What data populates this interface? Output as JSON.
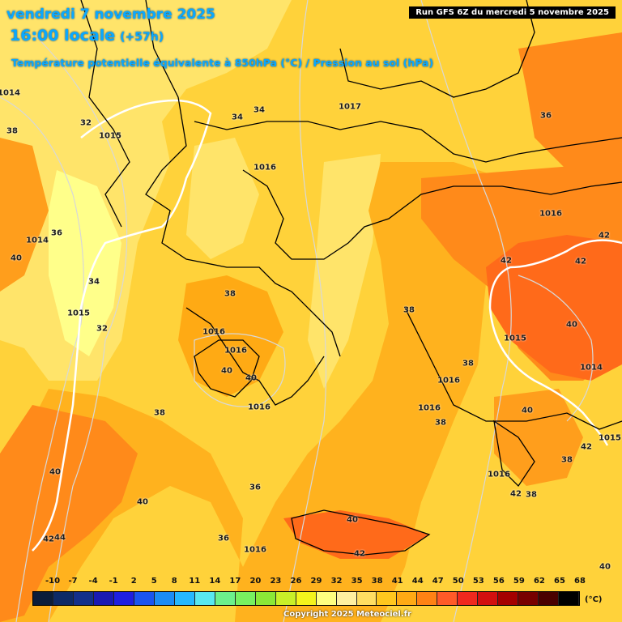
{
  "header": {
    "date": "vendredi 7 novembre 2025",
    "time": "16:00 locale",
    "lead_time": "(+57h)",
    "subtitle": "Température potentielle équivalente à 850hPa (°C) / Pression au sol (hPa)",
    "run_info": "Run GFS 6Z du mercredi 5 novembre 2025"
  },
  "map_labels": {
    "temperature": [
      "38",
      "36",
      "34",
      "32",
      "32",
      "34",
      "34",
      "36",
      "38",
      "42",
      "42",
      "42",
      "40",
      "40",
      "38",
      "38",
      "40",
      "40",
      "38",
      "40",
      "36",
      "36",
      "38",
      "38",
      "42",
      "40",
      "42",
      "40",
      "40",
      "42",
      "42",
      "44",
      "40",
      "38"
    ],
    "pressure": [
      "1014",
      "1014",
      "1015",
      "1016",
      "1017",
      "1016",
      "1016",
      "1016",
      "1016",
      "1016",
      "1016",
      "1015",
      "1014",
      "1015",
      "1016",
      "1015",
      "1016"
    ]
  },
  "legend": {
    "ticks": [
      "-10",
      "-7",
      "-4",
      "-1",
      "2",
      "5",
      "8",
      "11",
      "14",
      "17",
      "20",
      "23",
      "26",
      "29",
      "32",
      "35",
      "38",
      "41",
      "44",
      "47",
      "50",
      "53",
      "56",
      "59",
      "62",
      "65",
      "68"
    ],
    "unit": "(°C)",
    "colors": [
      "#0b1d3a",
      "#0d2a66",
      "#13308a",
      "#1a1ab2",
      "#1f1fe0",
      "#1a55f0",
      "#1b8cf5",
      "#25b8ff",
      "#58e8f0",
      "#6cf08c",
      "#78f060",
      "#8be837",
      "#c8f028",
      "#f4f41c",
      "#ffff80",
      "#fff0a0",
      "#ffde62",
      "#ffc81e",
      "#ffaa14",
      "#ff8214",
      "#ff5a28",
      "#f0281e",
      "#d20f0f",
      "#a50000",
      "#780000",
      "#4a0000",
      "#000000"
    ]
  },
  "copyright": "Copyright 2025 Meteociel.fr"
}
